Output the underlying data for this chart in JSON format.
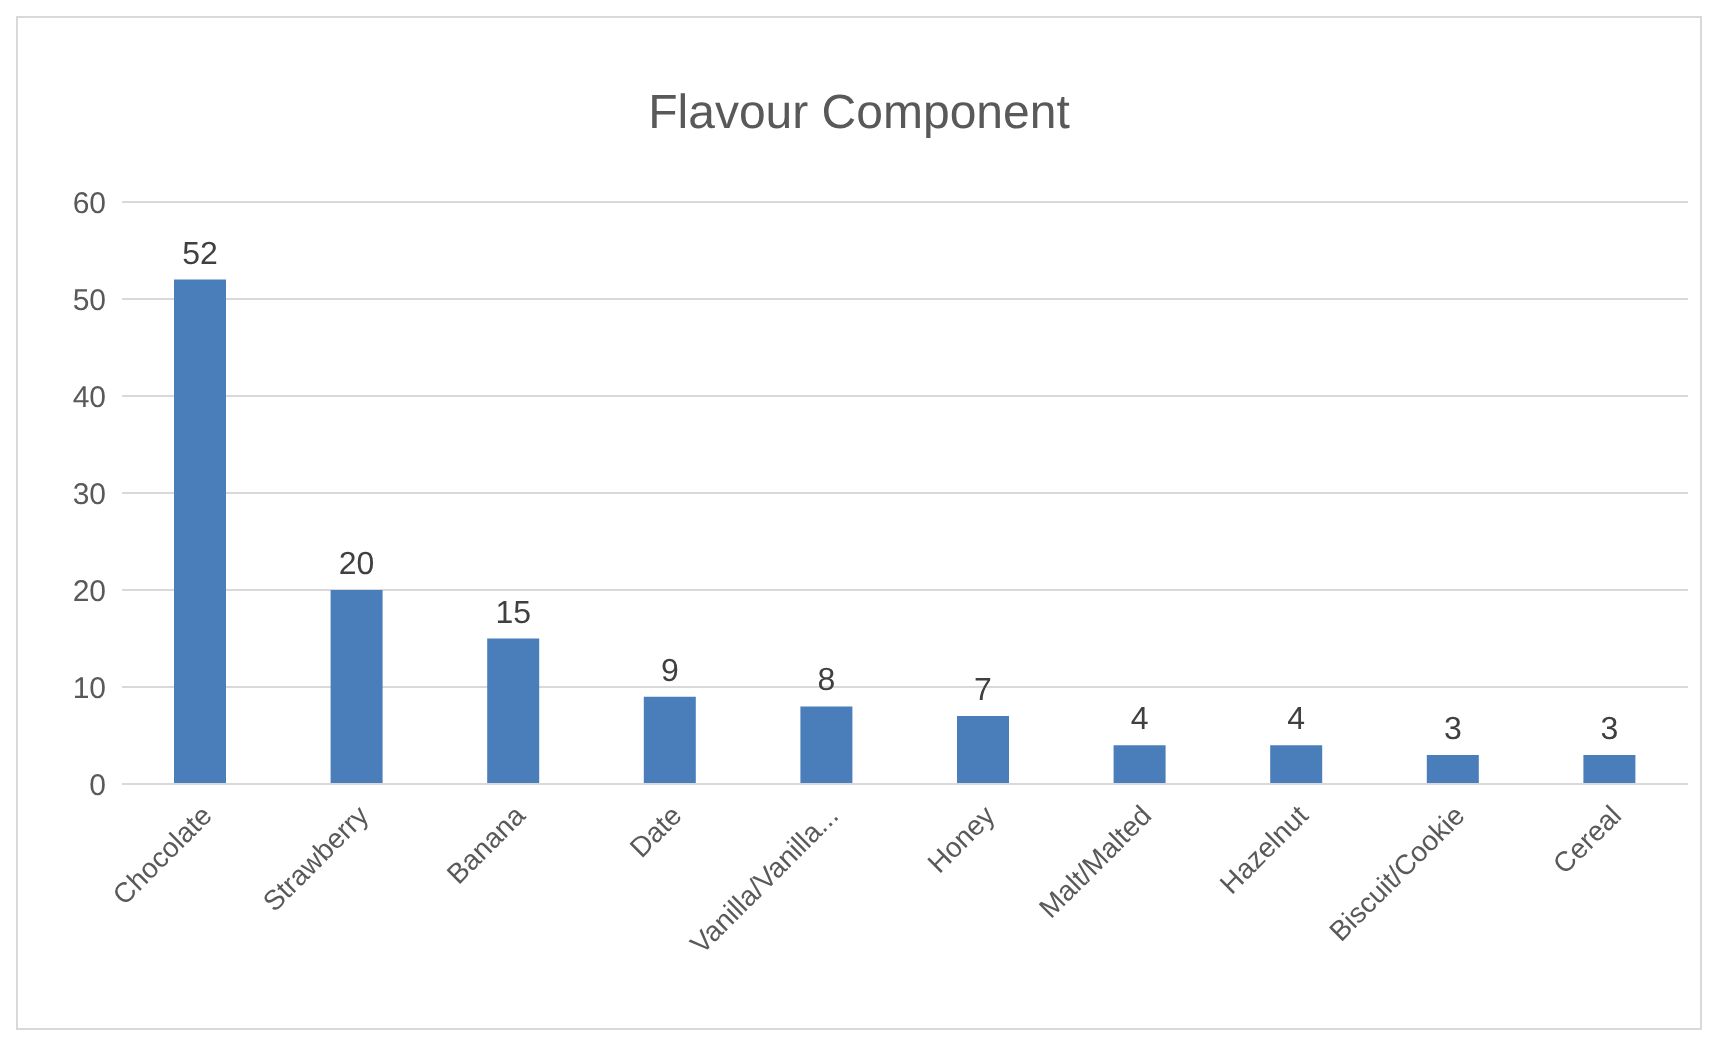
{
  "chart_data": {
    "type": "bar",
    "title": "Flavour Component",
    "categories": [
      "Chocolate",
      "Strawberry",
      "Banana",
      "Date",
      "Vanilla/Vanilla...",
      "Honey",
      "Malt/Malted",
      "Hazelnut",
      "Biscuit/Cookie",
      "Cereal"
    ],
    "values": [
      52,
      20,
      15,
      9,
      8,
      7,
      4,
      4,
      3,
      3
    ],
    "color": "#4a7ebb",
    "ylim": [
      0,
      60
    ],
    "yticks": [
      0,
      10,
      20,
      30,
      40,
      50,
      60
    ],
    "grid": "y",
    "data_labels": true
  }
}
